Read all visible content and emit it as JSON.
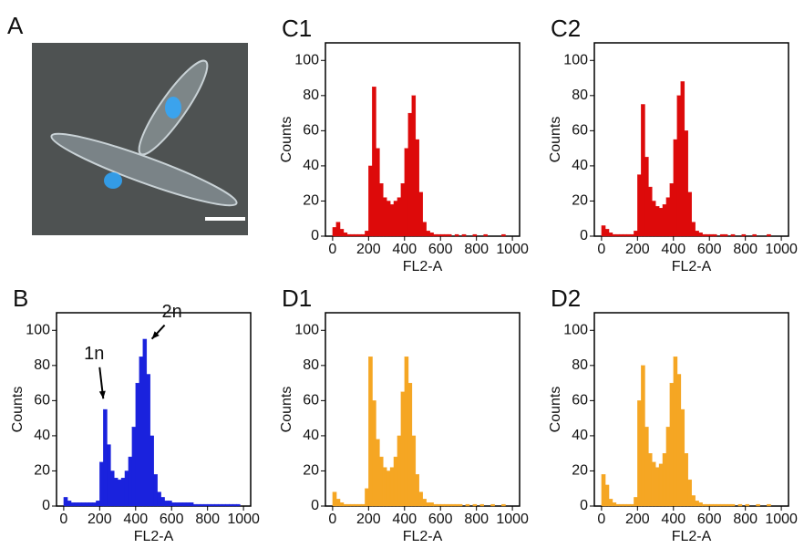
{
  "image_panel": {
    "label": "A"
  },
  "chart_data": [
    {
      "type": "histogram",
      "title": "C1",
      "xlabel": "FL2-A",
      "ylabel": "Counts",
      "color": "#dd0a0a",
      "bins": [
        0,
        20,
        40,
        60,
        80,
        100,
        120,
        140,
        160,
        180,
        200,
        220,
        240,
        260,
        280,
        300,
        320,
        340,
        360,
        380,
        400,
        420,
        440,
        460,
        480,
        500,
        520,
        540,
        560,
        580,
        600,
        620,
        640,
        660,
        680,
        700,
        720,
        740,
        760,
        780,
        800,
        820,
        840,
        860,
        880,
        900,
        920,
        940,
        960,
        980,
        1000
      ],
      "counts": [
        5,
        8,
        4,
        2,
        1,
        1,
        1,
        1,
        1,
        3,
        40,
        85,
        50,
        30,
        22,
        20,
        18,
        20,
        22,
        30,
        50,
        70,
        80,
        55,
        25,
        8,
        3,
        2,
        1,
        1,
        1,
        1,
        1,
        0,
        1,
        0,
        1,
        0,
        0,
        1,
        0,
        0,
        1,
        0,
        0,
        0,
        0,
        1,
        0,
        0
      ],
      "xlim": [
        -40,
        1040
      ],
      "ylim": [
        0,
        110
      ],
      "xticks": [
        0,
        200,
        400,
        600,
        800,
        1000
      ],
      "yticks": [
        0,
        20,
        40,
        60,
        80,
        100
      ]
    },
    {
      "type": "histogram",
      "title": "C2",
      "xlabel": "FL2-A",
      "ylabel": "Counts",
      "color": "#dd0a0a",
      "bins": [
        0,
        20,
        40,
        60,
        80,
        100,
        120,
        140,
        160,
        180,
        200,
        220,
        240,
        260,
        280,
        300,
        320,
        340,
        360,
        380,
        400,
        420,
        440,
        460,
        480,
        500,
        520,
        540,
        560,
        580,
        600,
        620,
        640,
        660,
        680,
        700,
        720,
        740,
        760,
        780,
        800,
        820,
        840,
        860,
        880,
        900,
        920,
        940,
        960,
        980,
        1000
      ],
      "counts": [
        6,
        4,
        2,
        1,
        1,
        1,
        1,
        1,
        1,
        3,
        35,
        75,
        45,
        28,
        20,
        17,
        16,
        18,
        22,
        30,
        55,
        80,
        88,
        60,
        25,
        8,
        3,
        2,
        1,
        1,
        1,
        1,
        0,
        1,
        1,
        0,
        1,
        0,
        0,
        1,
        0,
        0,
        1,
        0,
        0,
        0,
        1,
        0,
        0,
        0
      ],
      "xlim": [
        -40,
        1040
      ],
      "ylim": [
        0,
        110
      ],
      "xticks": [
        0,
        200,
        400,
        600,
        800,
        1000
      ],
      "yticks": [
        0,
        20,
        40,
        60,
        80,
        100
      ]
    },
    {
      "type": "histogram",
      "title": "B",
      "xlabel": "FL2-A",
      "ylabel": "Counts",
      "color": "#1a22dd",
      "annotations": [
        "1n",
        "2n"
      ],
      "bins": [
        0,
        20,
        40,
        60,
        80,
        100,
        120,
        140,
        160,
        180,
        200,
        220,
        240,
        260,
        280,
        300,
        320,
        340,
        360,
        380,
        400,
        420,
        440,
        460,
        480,
        500,
        520,
        540,
        560,
        580,
        600,
        620,
        640,
        660,
        680,
        700,
        720,
        740,
        760,
        780,
        800,
        820,
        840,
        860,
        880,
        900,
        920,
        940,
        960,
        980,
        1000
      ],
      "counts": [
        5,
        3,
        2,
        2,
        2,
        2,
        2,
        2,
        2,
        3,
        25,
        55,
        35,
        20,
        16,
        15,
        16,
        20,
        28,
        45,
        70,
        85,
        95,
        75,
        40,
        18,
        8,
        5,
        3,
        3,
        2,
        2,
        2,
        2,
        2,
        2,
        1,
        1,
        1,
        1,
        1,
        1,
        1,
        1,
        1,
        1,
        1,
        1,
        1,
        0
      ],
      "xlim": [
        -40,
        1040
      ],
      "ylim": [
        0,
        110
      ],
      "xticks": [
        0,
        200,
        400,
        600,
        800,
        1000
      ],
      "yticks": [
        0,
        20,
        40,
        60,
        80,
        100
      ]
    },
    {
      "type": "histogram",
      "title": "D1",
      "xlabel": "FL2-A",
      "ylabel": "Counts",
      "color": "#f5a623",
      "bins": [
        0,
        20,
        40,
        60,
        80,
        100,
        120,
        140,
        160,
        180,
        200,
        220,
        240,
        260,
        280,
        300,
        320,
        340,
        360,
        380,
        400,
        420,
        440,
        460,
        480,
        500,
        520,
        540,
        560,
        580,
        600,
        620,
        640,
        660,
        680,
        700,
        720,
        740,
        760,
        780,
        800,
        820,
        840,
        860,
        880,
        900,
        920,
        940,
        960,
        980,
        1000
      ],
      "counts": [
        8,
        4,
        2,
        1,
        1,
        1,
        1,
        1,
        1,
        10,
        85,
        60,
        38,
        28,
        22,
        20,
        22,
        28,
        40,
        65,
        85,
        70,
        40,
        18,
        8,
        4,
        2,
        2,
        1,
        1,
        1,
        1,
        1,
        1,
        1,
        1,
        0,
        1,
        0,
        1,
        0,
        1,
        0,
        0,
        1,
        0,
        0,
        1,
        0,
        0
      ],
      "xlim": [
        -40,
        1040
      ],
      "ylim": [
        0,
        110
      ],
      "xticks": [
        0,
        200,
        400,
        600,
        800,
        1000
      ],
      "yticks": [
        0,
        20,
        40,
        60,
        80,
        100
      ]
    },
    {
      "type": "histogram",
      "title": "D2",
      "xlabel": "FL2-A",
      "ylabel": "Counts",
      "color": "#f5a623",
      "bins": [
        0,
        20,
        40,
        60,
        80,
        100,
        120,
        140,
        160,
        180,
        200,
        220,
        240,
        260,
        280,
        300,
        320,
        340,
        360,
        380,
        400,
        420,
        440,
        460,
        480,
        500,
        520,
        540,
        560,
        580,
        600,
        620,
        640,
        660,
        680,
        700,
        720,
        740,
        760,
        780,
        800,
        820,
        840,
        860,
        880,
        900,
        920,
        940,
        960,
        980,
        1000
      ],
      "counts": [
        18,
        12,
        4,
        2,
        1,
        1,
        1,
        1,
        1,
        5,
        60,
        80,
        45,
        30,
        25,
        22,
        24,
        30,
        45,
        70,
        85,
        75,
        55,
        30,
        15,
        6,
        3,
        2,
        1,
        1,
        1,
        1,
        1,
        1,
        1,
        1,
        1,
        0,
        1,
        0,
        1,
        0,
        0,
        1,
        0,
        0,
        1,
        0,
        0,
        0
      ],
      "xlim": [
        -40,
        1040
      ],
      "ylim": [
        0,
        110
      ],
      "xticks": [
        0,
        200,
        400,
        600,
        800,
        1000
      ],
      "yticks": [
        0,
        20,
        40,
        60,
        80,
        100
      ]
    }
  ]
}
